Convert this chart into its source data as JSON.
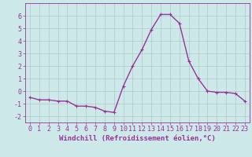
{
  "x": [
    0,
    1,
    2,
    3,
    4,
    5,
    6,
    7,
    8,
    9,
    10,
    11,
    12,
    13,
    14,
    15,
    16,
    17,
    18,
    19,
    20,
    21,
    22,
    23
  ],
  "y": [
    -0.5,
    -0.7,
    -0.7,
    -0.8,
    -0.8,
    -1.2,
    -1.2,
    -1.3,
    -1.6,
    -1.7,
    0.4,
    2.0,
    3.3,
    4.9,
    6.1,
    6.1,
    5.4,
    2.4,
    1.0,
    0.0,
    -0.1,
    -0.1,
    -0.2,
    -0.8
  ],
  "line_color": "#993399",
  "marker": "+",
  "marker_size": 3,
  "bg_color": "#cce8e8",
  "grid_color": "#b0c8c8",
  "xlabel": "Windchill (Refroidissement éolien,°C)",
  "xlabel_fontsize": 6.5,
  "ylim": [
    -2.5,
    7
  ],
  "xlim": [
    -0.5,
    23.5
  ],
  "yticks": [
    -2,
    -1,
    0,
    1,
    2,
    3,
    4,
    5,
    6
  ],
  "tick_fontsize": 6,
  "line_width": 1.0
}
